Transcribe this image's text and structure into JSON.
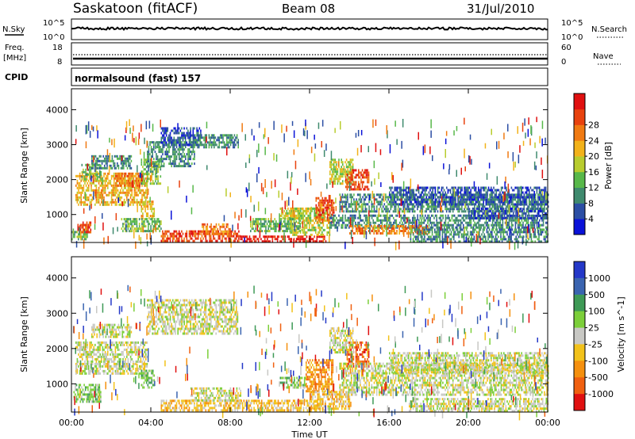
{
  "header": {
    "station": "Saskatoon (fitACF)",
    "beam": "Beam 08",
    "date": "31/Jul/2010"
  },
  "panels": {
    "nsky": {
      "left_label": "N.Sky",
      "left_ticks": [
        "10^5",
        "10^0"
      ],
      "right_ticks": [
        "10^5",
        "10^0"
      ],
      "right_label": "N.Search"
    },
    "freq": {
      "left_label_1": "Freq.",
      "left_label_2": "[MHz]",
      "left_ticks": [
        "18",
        "8"
      ],
      "right_ticks": [
        "60",
        "0"
      ],
      "right_label": "Nave"
    },
    "cpid": {
      "label": "CPID",
      "text": "normalsound (fast) 157"
    }
  },
  "chart_data": [
    {
      "type": "heatmap",
      "name": "power",
      "ylabel": "Slant Range [km]",
      "y_ticks": [
        1000,
        2000,
        3000,
        4000
      ],
      "ylim": [
        200,
        4600
      ],
      "colorbar": {
        "label": "Power [dB]",
        "ticks": [
          "4",
          "8",
          "12",
          "16",
          "20",
          "24",
          "28"
        ],
        "colors": [
          "#0a12d8",
          "#2b4ea4",
          "#3f8a6e",
          "#58b84a",
          "#b8cc2e",
          "#f2b21a",
          "#f07a12",
          "#e8420e",
          "#e01010"
        ]
      },
      "regions": [
        {
          "t": [
            0.2,
            3.8
          ],
          "r": [
            1300,
            2200
          ],
          "c": 5
        },
        {
          "t": [
            0.5,
            1.5
          ],
          "r": [
            2000,
            2450
          ],
          "c": 3
        },
        {
          "t": [
            0.3,
            1.0
          ],
          "r": [
            500,
            800
          ],
          "c": 7
        },
        {
          "t": [
            0.0,
            0.8
          ],
          "r": [
            300,
            600
          ],
          "c": 3
        },
        {
          "t": [
            1.0,
            3.0
          ],
          "r": [
            2300,
            2700
          ],
          "c": 2
        },
        {
          "t": [
            2.2,
            3.6
          ],
          "r": [
            1850,
            2200
          ],
          "c": 6
        },
        {
          "t": [
            3.5,
            4.5
          ],
          "r": [
            1900,
            2600
          ],
          "c": 3
        },
        {
          "t": [
            3.8,
            6.2
          ],
          "r": [
            2400,
            3100
          ],
          "c": 2
        },
        {
          "t": [
            4.5,
            6.5
          ],
          "r": [
            3000,
            3500
          ],
          "c": 1
        },
        {
          "t": [
            6.2,
            8.4
          ],
          "r": [
            2900,
            3300
          ],
          "c": 2
        },
        {
          "t": [
            3.5,
            4.2
          ],
          "r": [
            900,
            1400
          ],
          "c": 5
        },
        {
          "t": [
            2.5,
            4.5
          ],
          "r": [
            500,
            900
          ],
          "c": 3
        },
        {
          "t": [
            4.5,
            8.5
          ],
          "r": [
            250,
            550
          ],
          "c": 7
        },
        {
          "t": [
            6.5,
            8.0
          ],
          "r": [
            450,
            750
          ],
          "c": 6
        },
        {
          "t": [
            8.5,
            12.8
          ],
          "r": [
            250,
            400
          ],
          "c": 8
        },
        {
          "t": [
            10.5,
            12.0
          ],
          "r": [
            900,
            1200
          ],
          "c": 4
        },
        {
          "t": [
            11.0,
            13.0
          ],
          "r": [
            400,
            1200
          ],
          "c": 4
        },
        {
          "t": [
            12.3,
            13.2
          ],
          "r": [
            800,
            1500
          ],
          "c": 7
        },
        {
          "t": [
            13.0,
            14.2
          ],
          "r": [
            1900,
            2600
          ],
          "c": 4
        },
        {
          "t": [
            13.8,
            15.0
          ],
          "r": [
            1700,
            2300
          ],
          "c": 7
        },
        {
          "t": [
            13.5,
            24.0
          ],
          "r": [
            1100,
            1600
          ],
          "c": 2
        },
        {
          "t": [
            16.0,
            24.0
          ],
          "r": [
            1300,
            1800
          ],
          "c": 1
        },
        {
          "t": [
            13.0,
            24.0
          ],
          "r": [
            600,
            1000
          ],
          "c": 2
        },
        {
          "t": [
            14.0,
            18.0
          ],
          "r": [
            450,
            700
          ],
          "c": 6
        },
        {
          "t": [
            17.0,
            24.0
          ],
          "r": [
            250,
            600
          ],
          "c": 2
        },
        {
          "t": [
            9.0,
            11.5
          ],
          "r": [
            550,
            900
          ],
          "c": 3
        },
        {
          "t": [
            20.0,
            24.0
          ],
          "r": [
            900,
            1200
          ],
          "c": 1
        }
      ]
    },
    {
      "type": "heatmap",
      "name": "velocity",
      "ylabel": "Slant Range [km]",
      "y_ticks": [
        1000,
        2000,
        3000,
        4000
      ],
      "ylim": [
        200,
        4600
      ],
      "colorbar": {
        "label": "Velocity [m s^-1]",
        "ticks": [
          "1000",
          "500",
          "100",
          "25",
          "-25",
          "-100",
          "-500",
          "-1000"
        ],
        "colors": [
          "#2438c8",
          "#3a64b0",
          "#3e9a56",
          "#7ccf3a",
          "#c8c8c4",
          "#f2c21a",
          "#f5900e",
          "#f06010",
          "#e01010"
        ]
      },
      "regions": [
        {
          "t": [
            0.2,
            3.8
          ],
          "r": [
            1300,
            2200
          ],
          "c": 4
        },
        {
          "t": [
            1.0,
            3.0
          ],
          "r": [
            2300,
            2700
          ],
          "c": 4
        },
        {
          "t": [
            3.8,
            8.4
          ],
          "r": [
            2400,
            3400
          ],
          "c": 4
        },
        {
          "t": [
            0.1,
            1.5
          ],
          "r": [
            500,
            1000
          ],
          "c": 3
        },
        {
          "t": [
            3.5,
            4.2
          ],
          "r": [
            900,
            1400
          ],
          "c": 3
        },
        {
          "t": [
            4.5,
            12.8
          ],
          "r": [
            250,
            550
          ],
          "c": 5
        },
        {
          "t": [
            6.0,
            8.5
          ],
          "r": [
            550,
            900
          ],
          "c": 4
        },
        {
          "t": [
            10.5,
            11.8
          ],
          "r": [
            900,
            1200
          ],
          "c": 3
        },
        {
          "t": [
            11.8,
            13.2
          ],
          "r": [
            800,
            1700
          ],
          "c": 6
        },
        {
          "t": [
            13.8,
            15.0
          ],
          "r": [
            1500,
            2200
          ],
          "c": 7
        },
        {
          "t": [
            13.0,
            14.2
          ],
          "r": [
            1900,
            2600
          ],
          "c": 4
        },
        {
          "t": [
            13.5,
            24.0
          ],
          "r": [
            700,
            1600
          ],
          "c": 4
        },
        {
          "t": [
            16.0,
            24.0
          ],
          "r": [
            1300,
            1900
          ],
          "c": 4
        },
        {
          "t": [
            12.0,
            14.0
          ],
          "r": [
            300,
            800
          ],
          "c": 5
        },
        {
          "t": [
            17.0,
            24.0
          ],
          "r": [
            250,
            600
          ],
          "c": 4
        }
      ]
    }
  ],
  "x_axis": {
    "label": "Time UT",
    "ticks": [
      "00:00",
      "04:00",
      "08:00",
      "12:00",
      "16:00",
      "20:00",
      "00:00"
    ],
    "range_hours": [
      0,
      24
    ]
  }
}
